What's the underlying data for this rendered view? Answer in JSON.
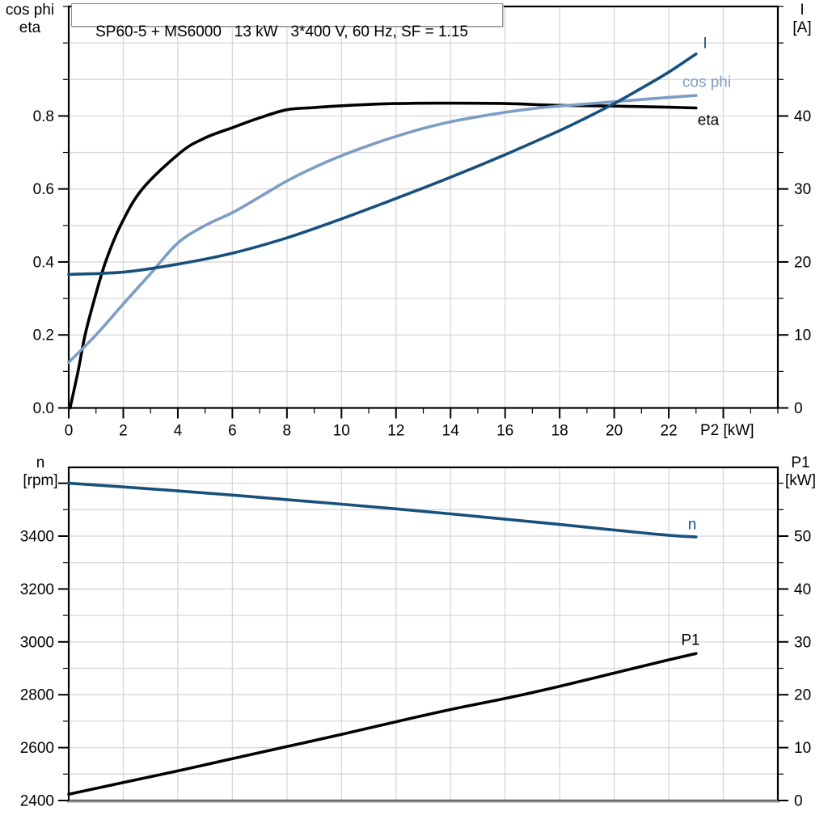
{
  "header": {
    "title_box": "SP60-5 + MS6000   13 kW   3*400 V, 60 Hz, SF = 1.15"
  },
  "axis_titles": {
    "top_left": [
      "cos phi",
      "eta"
    ],
    "top_right": [
      "I",
      "[A]"
    ],
    "bottom_left": [
      "n",
      "[rpm]"
    ],
    "bottom_right": [
      "P1",
      "[kW]"
    ],
    "x": "P2 [kW]"
  },
  "colors": {
    "black": "#000000",
    "dark_blue": "#17507d",
    "light_blue": "#7c9dc4",
    "grid": "#d8d8d8",
    "frame": "#000000",
    "bottom_edge_gray": "#8e8e8e"
  },
  "chart_data": [
    {
      "id": "top",
      "type": "line",
      "title": "SP60-5 + MS6000   13 kW   3*400 V, 60 Hz, SF = 1.15",
      "xlabel": "P2 [kW]",
      "ylabel_left": "cos phi / eta",
      "ylabel_right": "I [A]",
      "xlim": [
        0,
        26
      ],
      "x_grid_step": 2,
      "x_minor_step": 1,
      "x_tick_values": [
        0,
        2,
        4,
        6,
        8,
        10,
        12,
        14,
        16,
        18,
        20,
        22
      ],
      "x_tick_labels": [
        "0",
        "2",
        "4",
        "6",
        "8",
        "10",
        "12",
        "14",
        "16",
        "18",
        "20",
        "22"
      ],
      "x_extra_major_ticks": [
        24
      ],
      "show_x_ticks": true,
      "left_lim": [
        0,
        1.1
      ],
      "left_tick_values": [
        0,
        0.2,
        0.4,
        0.6,
        0.8
      ],
      "left_tick_labels": [
        "0.0",
        "0.2",
        "0.4",
        "0.6",
        "0.8"
      ],
      "left_minor_step": 0.1,
      "right_lim": [
        0,
        55
      ],
      "right_tick_values": [
        0,
        10,
        20,
        30,
        40
      ],
      "right_tick_labels": [
        "0",
        "10",
        "20",
        "30",
        "40"
      ],
      "right_minor_step": 5,
      "grid": true,
      "legend_position": "inline-labels",
      "series": [
        {
          "name": "eta",
          "label": "eta",
          "axis": "left",
          "color": "black",
          "x": [
            0.05,
            0.34,
            0.6,
            0.95,
            1.35,
            1.9,
            2.7,
            4.1,
            5,
            6,
            7,
            8,
            9,
            10,
            12,
            14,
            16,
            18,
            20,
            22,
            23
          ],
          "y": [
            0,
            0.1,
            0.2,
            0.3,
            0.4,
            0.5,
            0.6,
            0.7,
            0.74,
            0.768,
            0.795,
            0.817,
            0.823,
            0.828,
            0.834,
            0.835,
            0.834,
            0.829,
            0.827,
            0.824,
            0.822
          ]
        },
        {
          "name": "cos phi",
          "label": "cos phi",
          "axis": "left",
          "color": "light_blue",
          "x": [
            0,
            1,
            2,
            3,
            4,
            5,
            6,
            7,
            8,
            9,
            10,
            11,
            12,
            13,
            14,
            15,
            16,
            17,
            18,
            19,
            20,
            21,
            22,
            23
          ],
          "y": [
            0.125,
            0.2,
            0.285,
            0.368,
            0.452,
            0.5,
            0.535,
            0.578,
            0.622,
            0.659,
            0.691,
            0.719,
            0.744,
            0.766,
            0.784,
            0.798,
            0.81,
            0.82,
            0.827,
            0.833,
            0.839,
            0.845,
            0.851,
            0.856
          ]
        },
        {
          "name": "I",
          "label": "I",
          "axis": "right",
          "color": "dark_blue",
          "x": [
            0,
            2,
            4,
            6,
            8,
            10,
            12,
            14,
            16,
            18,
            19,
            20,
            21,
            22,
            23
          ],
          "y": [
            18.3,
            18.6,
            19.7,
            21.2,
            23.3,
            25.9,
            28.7,
            31.6,
            34.7,
            38.0,
            39.8,
            41.7,
            43.8,
            46.0,
            48.5
          ]
        }
      ]
    },
    {
      "id": "bottom",
      "type": "line",
      "title": "",
      "xlabel": "P2 [kW]",
      "ylabel_left": "n [rpm]",
      "ylabel_right": "P1 [kW]",
      "xlim": [
        0,
        26
      ],
      "x_grid_step": 2,
      "x_minor_step": 1,
      "x_tick_values": [],
      "x_tick_labels": [],
      "x_extra_major_ticks": [],
      "show_x_ticks": false,
      "left_lim": [
        2400,
        3660
      ],
      "left_tick_values": [
        2400,
        2600,
        2800,
        3000,
        3200,
        3400
      ],
      "left_tick_labels": [
        "2400",
        "2600",
        "2800",
        "3000",
        "3200",
        "3400"
      ],
      "left_extra_major_ticks": [
        3600
      ],
      "left_minor_step": 100,
      "right_lim": [
        0,
        63
      ],
      "right_tick_values": [
        0,
        10,
        20,
        30,
        40,
        50
      ],
      "right_tick_labels": [
        "0",
        "10",
        "20",
        "30",
        "40",
        "50"
      ],
      "right_minor_step": 5,
      "grid": true,
      "legend_position": "inline-labels",
      "series": [
        {
          "name": "n",
          "label": "n",
          "axis": "left",
          "color": "dark_blue",
          "x": [
            0,
            2,
            4,
            6,
            8,
            10,
            12,
            14,
            16,
            18,
            20,
            22,
            23
          ],
          "y": [
            3600,
            3586,
            3571,
            3555,
            3538,
            3521,
            3503,
            3484,
            3464,
            3444,
            3423,
            3403,
            3397
          ]
        },
        {
          "name": "P1",
          "label": "P1",
          "axis": "right",
          "color": "black",
          "x": [
            0,
            2,
            4,
            6,
            8,
            10,
            12,
            14,
            16,
            18,
            20,
            22,
            23
          ],
          "y": [
            1.2,
            3.4,
            5.6,
            7.9,
            10.2,
            12.5,
            14.9,
            17.2,
            19.3,
            21.6,
            24.1,
            26.6,
            27.8
          ]
        }
      ]
    }
  ]
}
